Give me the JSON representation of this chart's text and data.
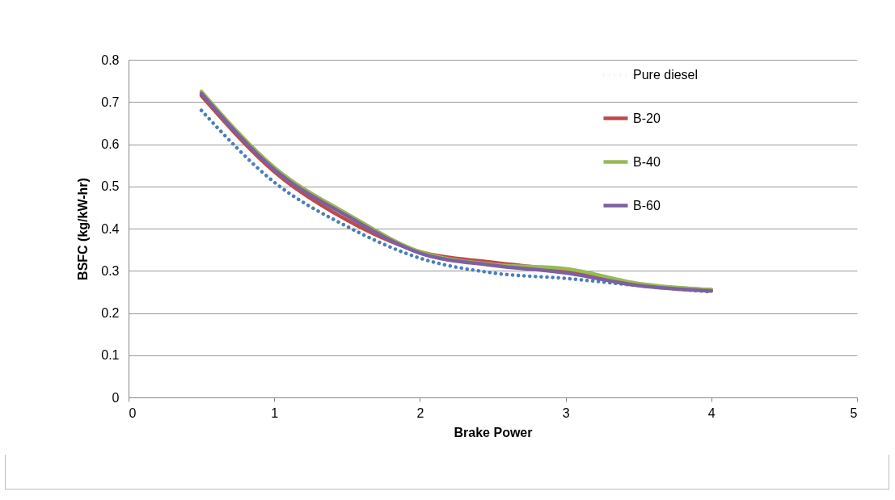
{
  "chart_data": {
    "type": "line",
    "xlabel": "Brake Power",
    "ylabel": "BSFC (kg/kW-hr)",
    "x": [
      0.5,
      1,
      1.5,
      2,
      2.5,
      3,
      3.5,
      4
    ],
    "xlim": [
      0,
      5
    ],
    "xticks": [
      0,
      1,
      2,
      3,
      4,
      5
    ],
    "ylim": [
      0,
      0.8
    ],
    "yticks": [
      {
        "value": 0,
        "label": "0"
      },
      0.1,
      0.2,
      0.3,
      0.4,
      0.5,
      0.6,
      0.7,
      0.8
    ],
    "grid": "y",
    "legend": "top right",
    "series": [
      {
        "name": "Pure diesel",
        "color": "#4a7ebb",
        "line_style": "dotted",
        "values": [
          0.68,
          0.51,
          0.405,
          0.33,
          0.295,
          0.282,
          0.265,
          0.25
        ]
      },
      {
        "name": "B-20",
        "color": "#be4b48",
        "values": [
          0.715,
          0.535,
          0.42,
          0.345,
          0.32,
          0.3,
          0.268,
          0.255
        ]
      },
      {
        "name": "B-40",
        "color": "#98b954",
        "values": [
          0.725,
          0.545,
          0.435,
          0.345,
          0.315,
          0.305,
          0.27,
          0.255
        ]
      },
      {
        "name": "B-60",
        "color": "#7d60a0",
        "values": [
          0.72,
          0.54,
          0.43,
          0.342,
          0.313,
          0.295,
          0.265,
          0.252
        ]
      }
    ]
  }
}
